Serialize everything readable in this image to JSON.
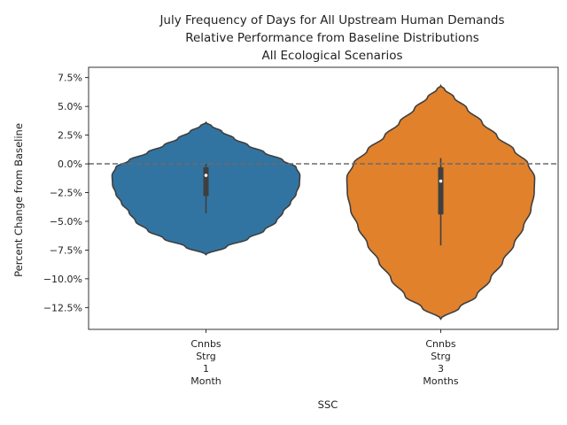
{
  "chart_data": {
    "type": "violin",
    "title": [
      "July Frequency of Days for All Upstream Human Demands",
      "Relative Performance from Baseline Distributions",
      "All Ecological Scenarios"
    ],
    "xlabel": "SSC",
    "ylabel": "Percent Change from Baseline",
    "ylim": [
      -14.4,
      8.4
    ],
    "yticks": [
      -12.5,
      -10.0,
      -7.5,
      -5.0,
      -2.5,
      0.0,
      2.5,
      5.0,
      7.5
    ],
    "ytick_labels": [
      "−12.5%",
      "−10.0%",
      "−7.5%",
      "−5.0%",
      "−2.5%",
      "0.0%",
      "2.5%",
      "5.0%",
      "7.5%"
    ],
    "reference_line": 0.0,
    "grid": false,
    "categories": [
      {
        "label_lines": [
          "Cnnbs",
          "Strg",
          "1",
          "Month"
        ]
      },
      {
        "label_lines": [
          "Cnnbs",
          "Strg",
          "3",
          "Months"
        ]
      }
    ],
    "series": [
      {
        "color": "#3274a1",
        "min": -7.9,
        "max": 3.6,
        "q1": -2.8,
        "median": -1.0,
        "q3": -0.3,
        "whisker_low": -4.3,
        "whisker_high": 0.0,
        "density": [
          [
            -7.9,
            0.0
          ],
          [
            -7.2,
            0.22
          ],
          [
            -6.5,
            0.45
          ],
          [
            -5.8,
            0.62
          ],
          [
            -5.0,
            0.75
          ],
          [
            -4.2,
            0.82
          ],
          [
            -3.4,
            0.9
          ],
          [
            -2.6,
            0.96
          ],
          [
            -1.8,
            0.995
          ],
          [
            -1.0,
            1.0
          ],
          [
            -0.3,
            0.96
          ],
          [
            0.3,
            0.82
          ],
          [
            1.0,
            0.62
          ],
          [
            1.6,
            0.45
          ],
          [
            2.2,
            0.3
          ],
          [
            2.8,
            0.17
          ],
          [
            3.3,
            0.06
          ],
          [
            3.6,
            0.0
          ]
        ]
      },
      {
        "color": "#e1812c",
        "min": -13.5,
        "max": 6.8,
        "q1": -4.4,
        "median": -1.5,
        "q3": -0.3,
        "whisker_low": -7.1,
        "whisker_high": 0.5,
        "density": [
          [
            -13.5,
            0.0
          ],
          [
            -12.5,
            0.2
          ],
          [
            -11.5,
            0.38
          ],
          [
            -10.0,
            0.53
          ],
          [
            -8.5,
            0.66
          ],
          [
            -7.0,
            0.78
          ],
          [
            -5.5,
            0.88
          ],
          [
            -4.0,
            0.96
          ],
          [
            -2.5,
            0.995
          ],
          [
            -1.2,
            1.0
          ],
          [
            0.0,
            0.93
          ],
          [
            1.2,
            0.78
          ],
          [
            2.4,
            0.6
          ],
          [
            3.6,
            0.44
          ],
          [
            4.8,
            0.28
          ],
          [
            5.8,
            0.14
          ],
          [
            6.5,
            0.04
          ],
          [
            6.8,
            0.0
          ]
        ]
      }
    ]
  }
}
